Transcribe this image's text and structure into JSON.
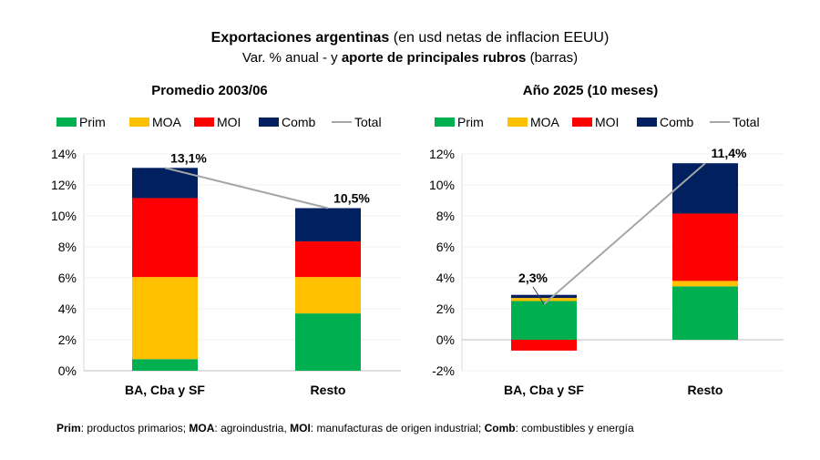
{
  "title_bold": "Exportaciones argentinas",
  "title_rest": " (en usd netas de inflacion EEUU)",
  "subtitle_a": "Var. % anual - y ",
  "subtitle_bold": "aporte de principales rubros",
  "subtitle_c": " (barras)",
  "footnote": [
    {
      "b": "Prim",
      "t": ": productos primarios; "
    },
    {
      "b": "MOA",
      "t": ": agroindustria, "
    },
    {
      "b": "MOI",
      "t": ": manufacturas de origen industrial; "
    },
    {
      "b": "Comb",
      "t": ": combustibles y energía"
    }
  ],
  "colors": {
    "Prim": "#00b050",
    "MOA": "#ffc000",
    "MOI": "#ff0000",
    "Comb": "#002060",
    "Total": "#a6a6a6"
  },
  "chart_data": [
    {
      "type": "bar",
      "stacked": true,
      "title": "Promedio 2003/06",
      "categories": [
        "BA, Cba y SF",
        "Resto"
      ],
      "series": [
        {
          "name": "Prim",
          "values": [
            0.75,
            3.7
          ]
        },
        {
          "name": "MOA",
          "values": [
            5.3,
            2.35
          ]
        },
        {
          "name": "MOI",
          "values": [
            5.1,
            2.3
          ]
        },
        {
          "name": "Comb",
          "values": [
            1.95,
            2.15
          ]
        }
      ],
      "line": {
        "name": "Total",
        "values": [
          13.1,
          10.5
        ],
        "labels": [
          "13,1%",
          "10,5%"
        ]
      },
      "ylim": [
        0,
        14
      ],
      "yticks": [
        "0%",
        "2%",
        "4%",
        "6%",
        "8%",
        "10%",
        "12%",
        "14%"
      ],
      "legend": "top"
    },
    {
      "type": "bar",
      "stacked": true,
      "title": "Año 2025 (10 meses)",
      "categories": [
        "BA, Cba y SF",
        "Resto"
      ],
      "series": [
        {
          "name": "Prim",
          "values": [
            2.5,
            3.45
          ]
        },
        {
          "name": "MOA",
          "values": [
            0.2,
            0.35
          ]
        },
        {
          "name": "MOI",
          "values": [
            -0.7,
            4.35
          ]
        },
        {
          "name": "Comb",
          "values": [
            0.2,
            3.25
          ]
        }
      ],
      "line": {
        "name": "Total",
        "values": [
          2.3,
          11.4
        ],
        "labels": [
          "2,3%",
          "11,4%"
        ]
      },
      "ylim": [
        -2,
        12
      ],
      "yticks": [
        "-2%",
        "0%",
        "2%",
        "4%",
        "6%",
        "8%",
        "10%",
        "12%"
      ],
      "legend": "top"
    }
  ]
}
